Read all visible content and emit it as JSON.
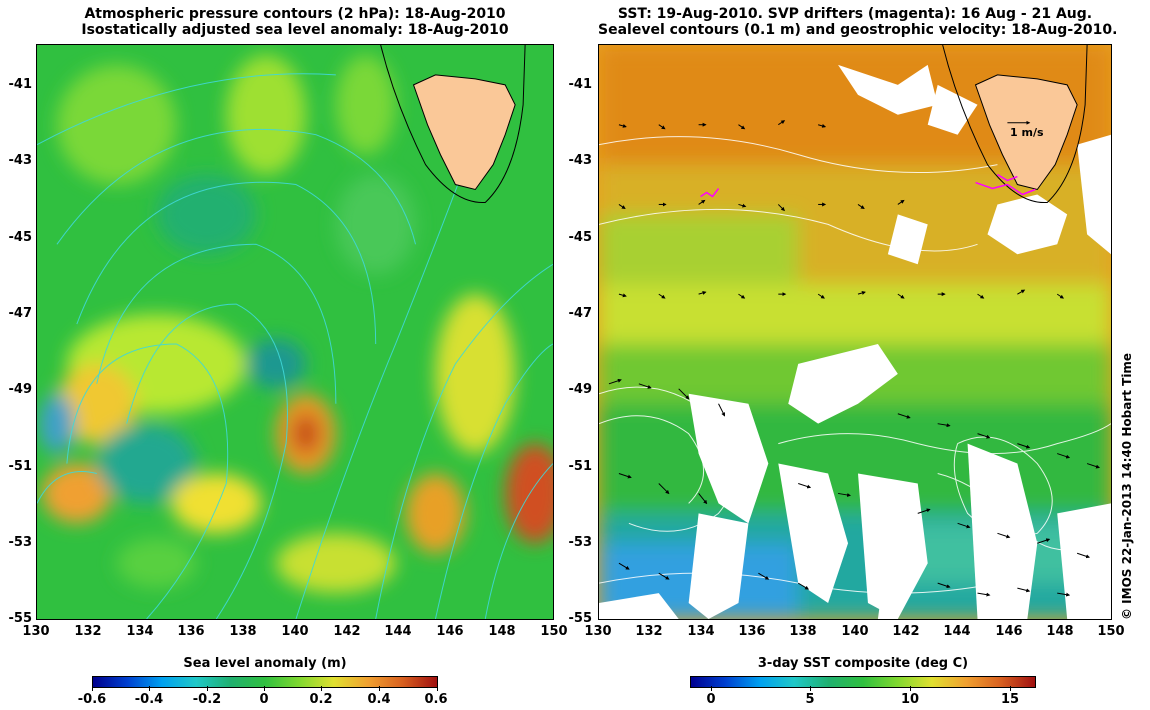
{
  "left_panel": {
    "title_line1": "Atmospheric pressure contours (2 hPa): 18-Aug-2010",
    "title_line2": "Isostatically adjusted sea level anomaly: 18-Aug-2010",
    "colorbar_label": "Sea level anomaly (m)",
    "colorbar_ticks": [
      "-0.6",
      "-0.4",
      "-0.2",
      "0",
      "0.2",
      "0.4",
      "0.6"
    ]
  },
  "right_panel": {
    "title_line1": "SST: 19-Aug-2010. SVP drifters (magenta): 16 Aug - 21 Aug.",
    "title_line2": "Sealevel contours (0.1 m) and geostrophic velocity: 18-Aug-2010.",
    "colorbar_label": "3-day SST composite (deg C)",
    "colorbar_ticks": [
      "0",
      "5",
      "10",
      "15"
    ],
    "velocity_scale_label": "1 m/s"
  },
  "axes": {
    "x_ticks": [
      "130",
      "132",
      "134",
      "136",
      "138",
      "140",
      "142",
      "144",
      "146",
      "148",
      "150"
    ],
    "y_ticks": [
      "-41",
      "-43",
      "-45",
      "-47",
      "-49",
      "-51",
      "-53",
      "-55"
    ],
    "lon_range": [
      130,
      150
    ],
    "lat_range": [
      -55,
      -40.5
    ]
  },
  "credit": "© IMOS 22-Jan-2013 14:40 Hobart Time",
  "colors": {
    "land": "#fac898",
    "slp_contour": "#40d8d8",
    "sst_contour": "#ffffff",
    "drifter": "#ff00ff",
    "cloud_mask": "#ffffff"
  },
  "icons": [
    "tasmania-landmass",
    "velocity-arrow",
    "drifter-track"
  ]
}
